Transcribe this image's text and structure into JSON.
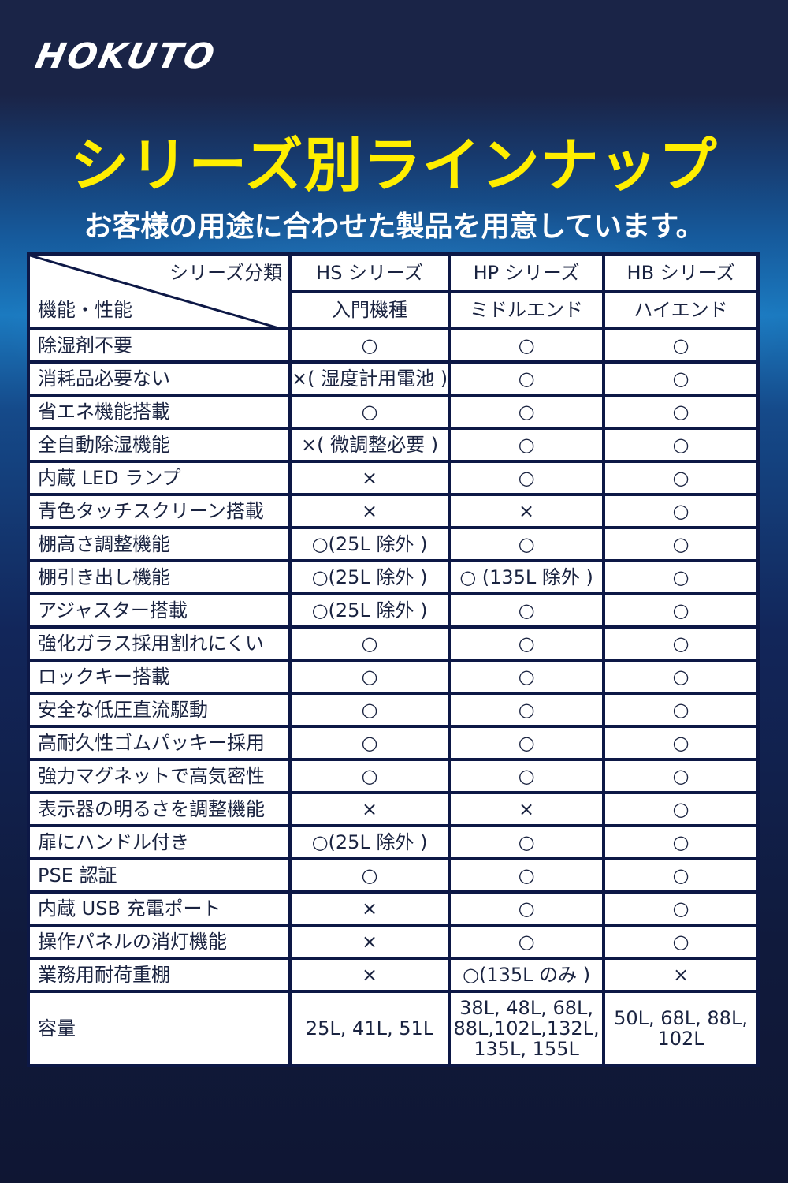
{
  "brand": {
    "logo": "HOKUTO"
  },
  "title": "シリーズ別ラインナップ",
  "subtitle": "お客様の用途に合わせた製品を用意しています。",
  "colors": {
    "title": "#ffee00",
    "background": "#1a2447",
    "table_border": "#0d1846",
    "text": "#1a2340"
  },
  "table": {
    "corner_top": "シリーズ分類",
    "corner_bottom": "機能・性能",
    "series": [
      {
        "name": "HS シリーズ",
        "tier": "入門機種"
      },
      {
        "name": "HP シリーズ",
        "tier": "ミドルエンド"
      },
      {
        "name": "HB シリーズ",
        "tier": "ハイエンド"
      }
    ],
    "rows": [
      {
        "feature": "除湿剤不要",
        "values": [
          "○",
          "○",
          "○"
        ]
      },
      {
        "feature": "消耗品必要ない",
        "values": [
          "×( 湿度計用電池 )",
          "○",
          "○"
        ]
      },
      {
        "feature": "省エネ機能搭載",
        "values": [
          "○",
          "○",
          "○"
        ]
      },
      {
        "feature": "全自動除湿機能",
        "values": [
          "×( 微調整必要 )",
          "○",
          "○"
        ]
      },
      {
        "feature": "内蔵 LED ランプ",
        "values": [
          "×",
          "○",
          "○"
        ]
      },
      {
        "feature": "青色タッチスクリーン搭載",
        "values": [
          "×",
          "×",
          "○"
        ]
      },
      {
        "feature": "棚高さ調整機能",
        "values": [
          "○(25L 除外 )",
          "○",
          "○"
        ]
      },
      {
        "feature": "棚引き出し機能",
        "values": [
          "○(25L 除外 )",
          "○ (135L 除外 )",
          "○"
        ]
      },
      {
        "feature": "アジャスター搭載",
        "values": [
          "○(25L 除外 )",
          "○",
          "○"
        ]
      },
      {
        "feature": "強化ガラス採用割れにくい",
        "values": [
          "○",
          "○",
          "○"
        ]
      },
      {
        "feature": "ロックキー搭載",
        "values": [
          "○",
          "○",
          "○"
        ]
      },
      {
        "feature": "安全な低圧直流駆動",
        "values": [
          "○",
          "○",
          "○"
        ]
      },
      {
        "feature": "高耐久性ゴムパッキー採用",
        "values": [
          "○",
          "○",
          "○"
        ]
      },
      {
        "feature": "強力マグネットで高気密性",
        "values": [
          "○",
          "○",
          "○"
        ]
      },
      {
        "feature": "表示器の明るさを調整機能",
        "values": [
          "×",
          "×",
          "○"
        ]
      },
      {
        "feature": "扉にハンドル付き",
        "values": [
          "○(25L 除外 )",
          "○",
          "○"
        ]
      },
      {
        "feature": "PSE 認証",
        "values": [
          "○",
          "○",
          "○"
        ]
      },
      {
        "feature": "内蔵 USB 充電ポート",
        "values": [
          "×",
          "○",
          "○"
        ]
      },
      {
        "feature": "操作パネルの消灯機能",
        "values": [
          "×",
          "○",
          "○"
        ]
      },
      {
        "feature": "業務用耐荷重棚",
        "values": [
          "×",
          "○(135L のみ )",
          "×"
        ]
      }
    ],
    "capacity": {
      "feature": "容量",
      "values": [
        "25L, 41L, 51L",
        "38L, 48L, 68L, 88L,102L,132L, 135L, 155L",
        "50L, 68L, 88L, 102L"
      ]
    }
  }
}
